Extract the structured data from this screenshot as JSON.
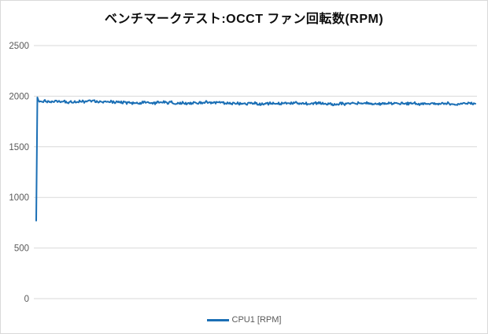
{
  "title": "ベンチマークテスト:OCCT ファン回転数(RPM)",
  "legend": {
    "items": [
      {
        "label": "CPU1 [RPM]",
        "color": "#1b6fb5"
      }
    ]
  },
  "colors": {
    "line": "#1b6fb5",
    "gridline": "#d9d9d9",
    "tick_text": "#595959",
    "title_text": "#0d0d0d",
    "background": "#ffffff",
    "border": "#d9d9d9"
  },
  "chart_data": {
    "type": "line",
    "title": "ベンチマークテスト:OCCT ファン回転数(RPM)",
    "xlabel": "",
    "ylabel": "",
    "ylim": [
      0,
      2500
    ],
    "yticks": [
      0,
      500,
      1000,
      1500,
      2000,
      2500
    ],
    "ytick_labels": [
      "0",
      "500",
      "1000",
      "1500",
      "2000",
      "2500"
    ],
    "x_axis_labels": "none",
    "grid": "horizontal",
    "legend_position": "bottom-center",
    "series": [
      {
        "name": "CPU1 [RPM]",
        "description": "Fan speed starts at ~770 RPM, spikes immediately to ~1990 RPM, then holds a noisy plateau drifting slowly from ~1950 down to ~1925 RPM across the full run",
        "start_value": 770,
        "peak_value": 1988,
        "plateau_anchors_t": [
          0,
          0.05,
          0.1,
          0.2,
          0.3,
          0.4,
          0.5,
          0.6,
          0.7,
          0.8,
          0.9,
          1
        ],
        "plateau_anchors_rpm": [
          1952,
          1946,
          1941,
          1938,
          1936,
          1935,
          1932,
          1930,
          1928,
          1928,
          1925,
          1929
        ],
        "noise_amplitude_rpm": 14,
        "noise_seed": 20
      }
    ]
  }
}
